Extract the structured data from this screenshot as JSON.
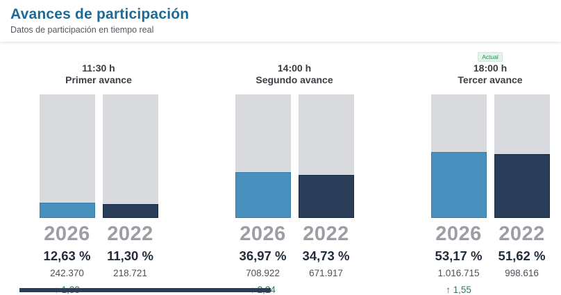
{
  "header": {
    "title": "Avances de participación",
    "subtitle": "Datos de participación en tiempo real"
  },
  "colors": {
    "title_teal": "#1d6a94",
    "bar_2026_blue": "#4a90bf",
    "bar_2022_navy": "#2b3e59",
    "bar_empty_gray": "#d9dadd",
    "positive_green": "#35785c",
    "badge_green": "#2e8b62"
  },
  "avances": [
    {
      "time": "11:30 h",
      "name": "Primer avance",
      "badge": "",
      "bars": [
        {
          "year": "2026",
          "percent_label": "12,63 %",
          "percent_value": 12.63,
          "count": "242.370"
        },
        {
          "year": "2022",
          "percent_label": "11,30 %",
          "percent_value": 11.3,
          "count": "218.721"
        }
      ],
      "diff": {
        "arrow": "↑",
        "value": "1,33"
      }
    },
    {
      "time": "14:00 h",
      "name": "Segundo avance",
      "badge": "",
      "bars": [
        {
          "year": "2026",
          "percent_label": "36,97 %",
          "percent_value": 36.97,
          "count": "708.922"
        },
        {
          "year": "2022",
          "percent_label": "34,73 %",
          "percent_value": 34.73,
          "count": "671.917"
        }
      ],
      "diff": {
        "arrow": "↑",
        "value": "2,24"
      }
    },
    {
      "time": "18:00 h",
      "name": "Tercer avance",
      "badge": "Actual",
      "bars": [
        {
          "year": "2026",
          "percent_label": "53,17 %",
          "percent_value": 53.17,
          "count": "1.016.715"
        },
        {
          "year": "2022",
          "percent_label": "51,62 %",
          "percent_value": 51.62,
          "count": "998.616"
        }
      ],
      "diff": {
        "arrow": "↑",
        "value": "1,55"
      }
    }
  ],
  "chart_data": {
    "type": "bar",
    "title": "Avances de participación",
    "subtitle": "Datos de participación en tiempo real",
    "categories": [
      "11:30 h · Primer avance",
      "14:00 h · Segundo avance",
      "18:00 h · Tercer avance"
    ],
    "series": [
      {
        "name": "2026",
        "values": [
          12.63,
          36.97,
          53.17
        ],
        "counts": [
          242370,
          708922,
          1016715
        ],
        "color": "#4a90bf"
      },
      {
        "name": "2022",
        "values": [
          11.3,
          34.73,
          51.62
        ],
        "counts": [
          218721,
          671917,
          998616
        ],
        "color": "#2b3e59"
      }
    ],
    "diffs_2026_vs_2022_points": [
      1.33,
      2.24,
      1.55
    ],
    "unit": "%",
    "ylim": [
      0,
      100
    ],
    "grid": false,
    "legend_position": "below-bars-as-year-labels",
    "current_marker": {
      "category_index": 2,
      "label": "Actual"
    }
  }
}
